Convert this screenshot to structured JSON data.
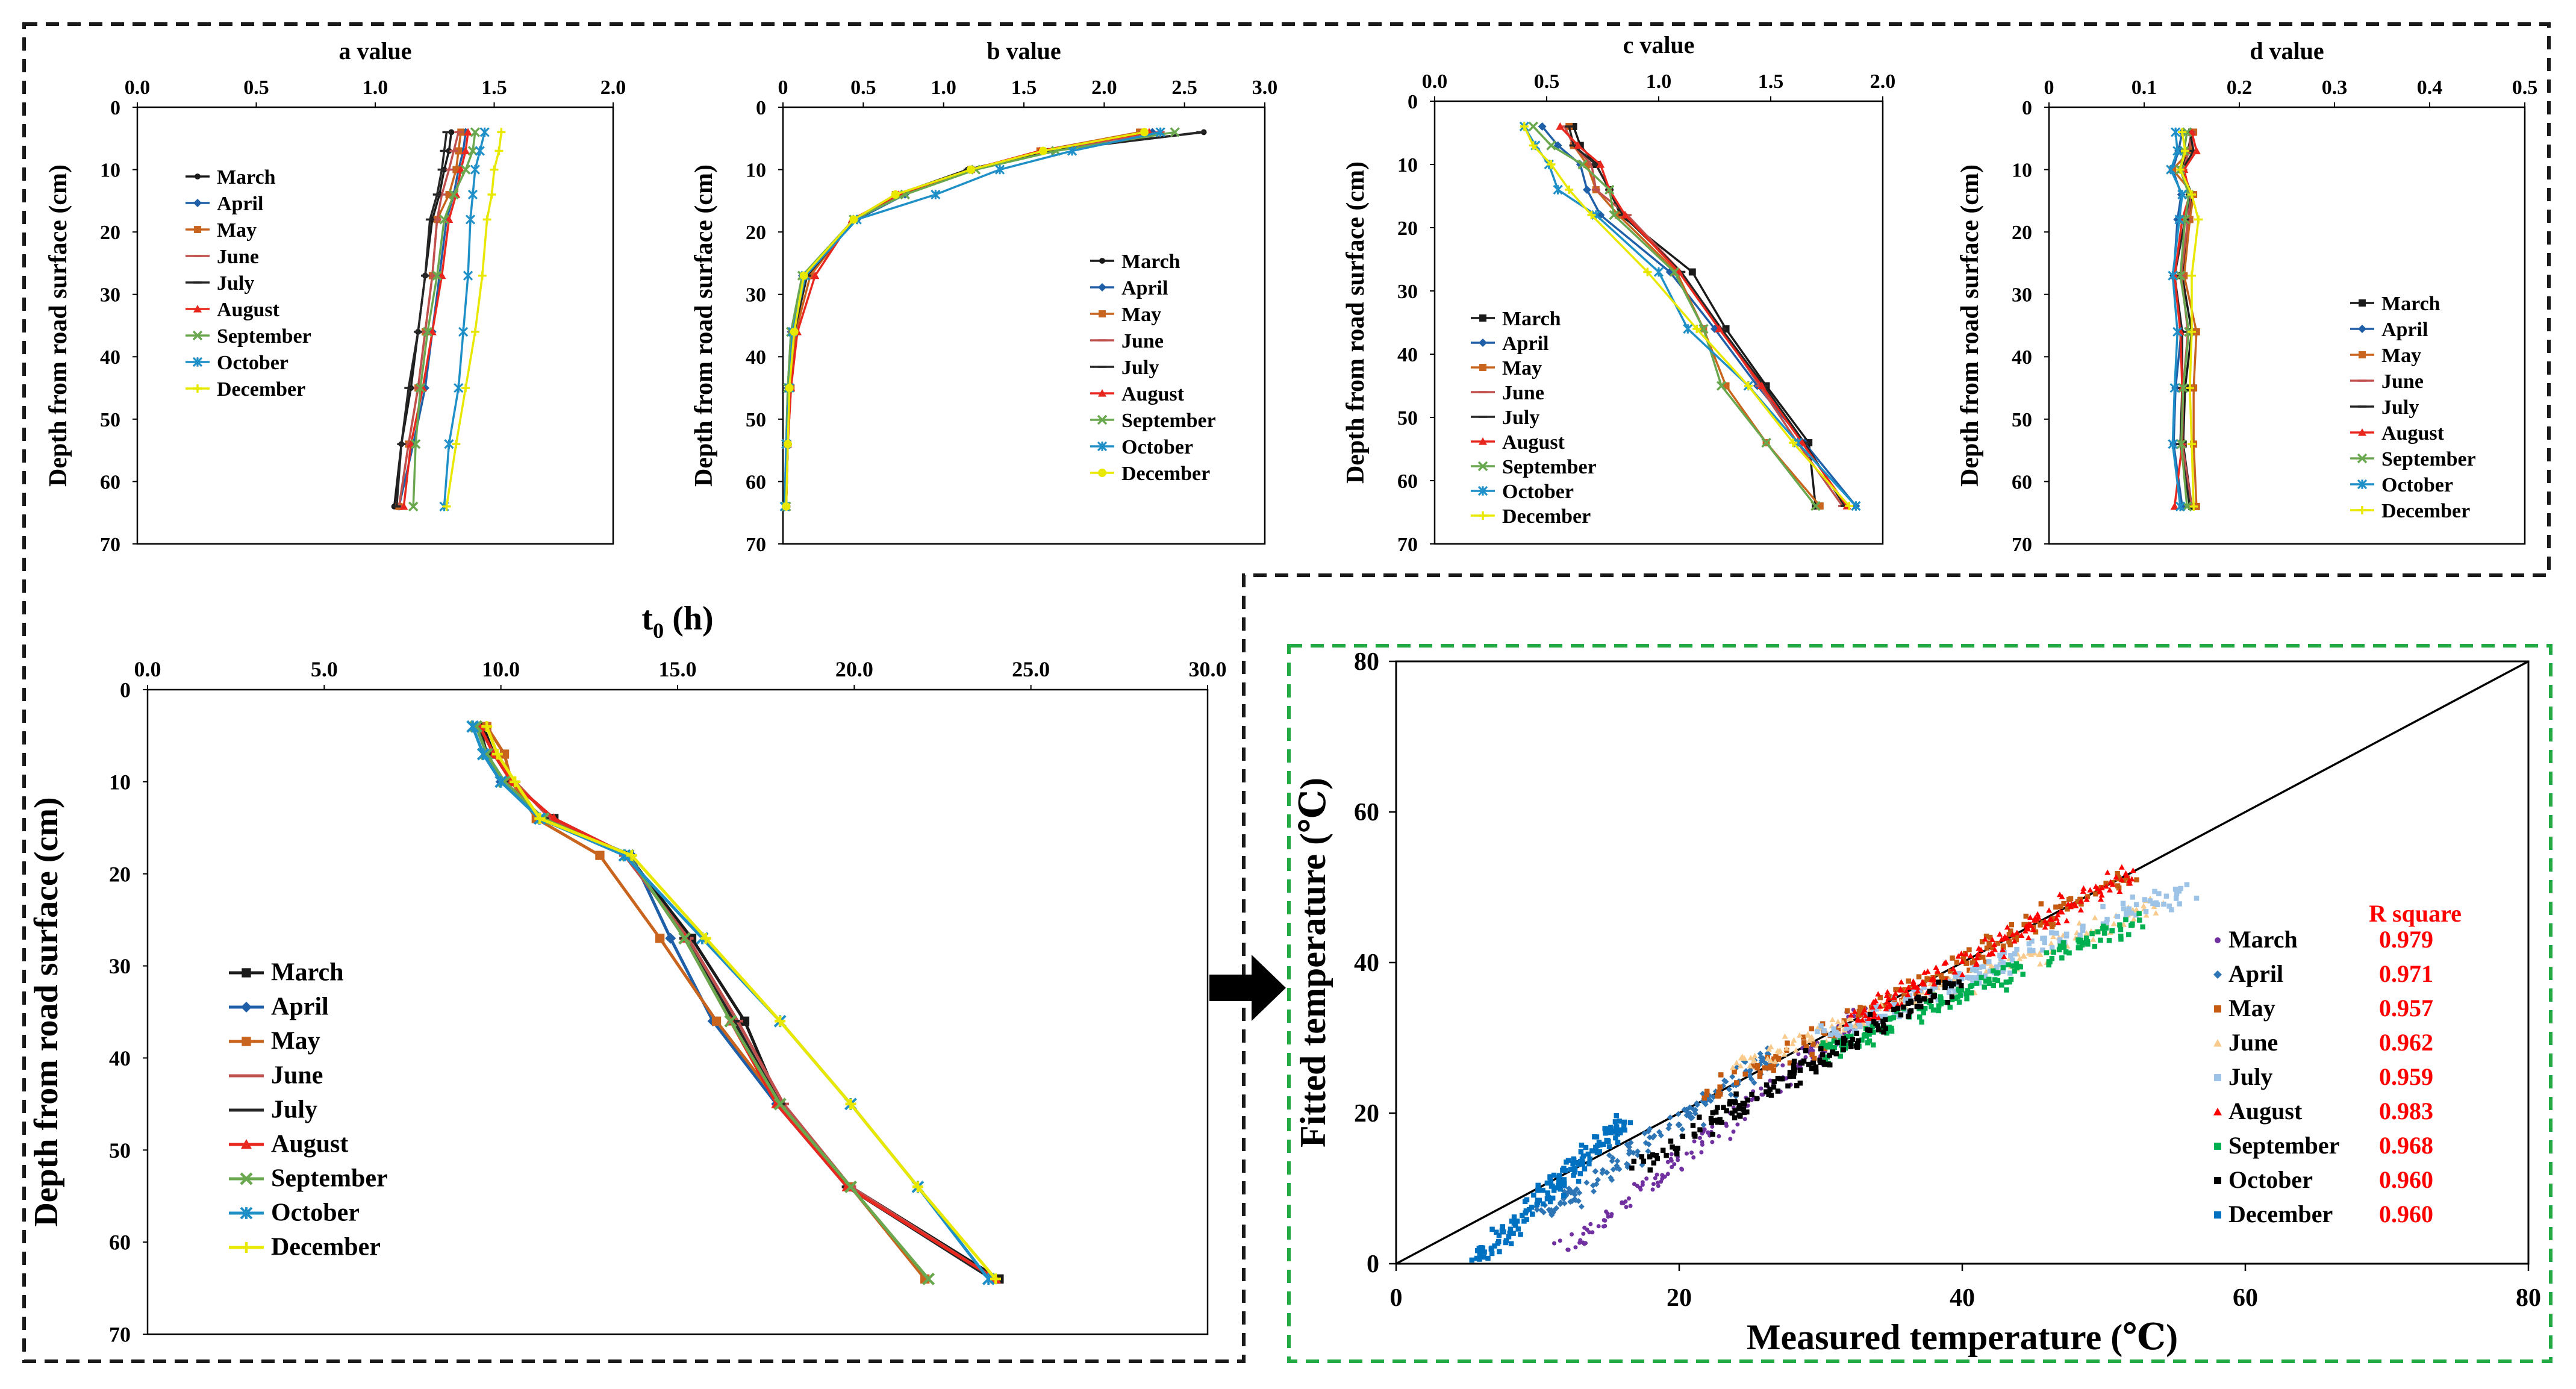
{
  "colors": {
    "March": "#1a1a1a",
    "April": "#1f5fa8",
    "May": "#c8641e",
    "June": "#c0504d",
    "July": "#262626",
    "August": "#e8281e",
    "September": "#6aa84f",
    "October": "#1f8fc8",
    "December": "#e8e800",
    "box_top": "#1a1a1a",
    "box_fit": "#22aa44",
    "arrow": "#000000"
  },
  "chart_data": [
    {
      "type": "line",
      "id": "a",
      "title": "a value",
      "ylabel": "Depth from road surface (cm)",
      "xlim": [
        0,
        2.0
      ],
      "xticks": [
        "0.0",
        "0.5",
        "1.0",
        "1.5",
        "2.0"
      ],
      "ylim": [
        0,
        70
      ],
      "yticks": [
        "0",
        "10",
        "20",
        "30",
        "40",
        "50",
        "60",
        "70"
      ],
      "legend": "center-left",
      "depths": [
        4,
        7,
        10,
        14,
        18,
        27,
        36,
        45,
        54,
        64
      ],
      "series": [
        {
          "name": "March",
          "marker": "dot",
          "values": [
            1.32,
            1.31,
            1.29,
            1.27,
            1.24,
            1.21,
            1.18,
            1.15,
            1.11,
            1.08
          ]
        },
        {
          "name": "April",
          "marker": "diamond",
          "values": [
            1.38,
            1.37,
            1.35,
            1.33,
            1.3,
            1.27,
            1.24,
            1.21,
            1.16,
            1.1
          ]
        },
        {
          "name": "May",
          "marker": "square",
          "values": [
            1.36,
            1.35,
            1.34,
            1.31,
            1.26,
            1.24,
            1.21,
            1.18,
            1.14,
            1.1
          ]
        },
        {
          "name": "June",
          "marker": "dash",
          "values": [
            1.35,
            1.33,
            1.31,
            1.28,
            1.26,
            1.24,
            1.21,
            1.18,
            1.14,
            1.1
          ]
        },
        {
          "name": "July",
          "marker": "dash",
          "values": [
            1.3,
            1.29,
            1.28,
            1.26,
            1.23,
            1.21,
            1.18,
            1.14,
            1.11,
            1.09
          ]
        },
        {
          "name": "August",
          "marker": "triangle",
          "values": [
            1.39,
            1.38,
            1.36,
            1.34,
            1.31,
            1.28,
            1.24,
            1.2,
            1.15,
            1.12
          ]
        },
        {
          "name": "September",
          "marker": "x",
          "values": [
            1.42,
            1.41,
            1.38,
            1.33,
            1.29,
            1.26,
            1.22,
            1.19,
            1.17,
            1.16
          ]
        },
        {
          "name": "October",
          "marker": "star",
          "values": [
            1.46,
            1.44,
            1.42,
            1.41,
            1.4,
            1.39,
            1.37,
            1.35,
            1.31,
            1.29
          ]
        },
        {
          "name": "December",
          "marker": "plus",
          "values": [
            1.53,
            1.52,
            1.5,
            1.49,
            1.47,
            1.45,
            1.42,
            1.38,
            1.34,
            1.3
          ]
        }
      ]
    },
    {
      "type": "line",
      "id": "b",
      "title": "b value",
      "ylabel": "Depth from road surface (cm)",
      "xlim": [
        0,
        3.0
      ],
      "xticks": [
        "0",
        "0.5",
        "1.0",
        "1.5",
        "2.0",
        "2.5",
        "3.0"
      ],
      "ylim": [
        0,
        70
      ],
      "yticks": [
        "0",
        "10",
        "20",
        "30",
        "40",
        "50",
        "60",
        "70"
      ],
      "legend": "right",
      "depths": [
        4,
        7,
        10,
        14,
        18,
        27,
        36,
        45,
        54,
        64
      ],
      "series": [
        {
          "name": "March",
          "marker": "dot",
          "values": [
            2.62,
            1.65,
            1.15,
            0.72,
            0.45,
            0.15,
            0.07,
            0.04,
            0.03,
            0.02
          ]
        },
        {
          "name": "April",
          "marker": "diamond",
          "values": [
            2.3,
            1.68,
            1.16,
            0.76,
            0.46,
            0.12,
            0.05,
            0.03,
            0.02,
            0.02
          ]
        },
        {
          "name": "May",
          "marker": "square",
          "values": [
            2.22,
            1.6,
            1.17,
            0.7,
            0.44,
            0.17,
            0.08,
            0.05,
            0.03,
            0.02
          ]
        },
        {
          "name": "June",
          "marker": "dash",
          "values": [
            2.35,
            1.62,
            1.18,
            0.74,
            0.45,
            0.14,
            0.06,
            0.04,
            0.03,
            0.02
          ]
        },
        {
          "name": "July",
          "marker": "dash",
          "values": [
            2.6,
            1.66,
            1.15,
            0.71,
            0.45,
            0.15,
            0.07,
            0.04,
            0.03,
            0.02
          ]
        },
        {
          "name": "August",
          "marker": "triangle",
          "values": [
            2.28,
            1.6,
            1.17,
            0.72,
            0.43,
            0.2,
            0.09,
            0.05,
            0.03,
            0.02
          ]
        },
        {
          "name": "September",
          "marker": "x",
          "values": [
            2.44,
            1.7,
            1.2,
            0.76,
            0.44,
            0.12,
            0.05,
            0.03,
            0.02,
            0.02
          ]
        },
        {
          "name": "October",
          "marker": "star",
          "values": [
            2.35,
            1.8,
            1.35,
            0.95,
            0.46,
            0.14,
            0.06,
            0.04,
            0.02,
            0.01
          ]
        },
        {
          "name": "December",
          "marker": "circle",
          "values": [
            2.25,
            1.62,
            1.17,
            0.7,
            0.44,
            0.13,
            0.07,
            0.04,
            0.03,
            0.02
          ]
        }
      ]
    },
    {
      "type": "line",
      "id": "c",
      "title": "c value",
      "ylabel": "Depth from road surface (cm)",
      "xlim": [
        0,
        2.0
      ],
      "xticks": [
        "0.0",
        "0.5",
        "1.0",
        "1.5",
        "2.0"
      ],
      "ylim": [
        0,
        70
      ],
      "yticks": [
        "0",
        "10",
        "20",
        "30",
        "40",
        "50",
        "60",
        "70"
      ],
      "legend": "bottom-left",
      "depths": [
        4,
        7,
        10,
        14,
        18,
        27,
        36,
        45,
        54,
        64
      ],
      "series": [
        {
          "name": "March",
          "marker": "square",
          "values": [
            0.62,
            0.65,
            0.72,
            0.78,
            0.83,
            1.15,
            1.3,
            1.48,
            1.67,
            1.7
          ]
        },
        {
          "name": "April",
          "marker": "diamond",
          "values": [
            0.48,
            0.55,
            0.65,
            0.68,
            0.74,
            1.05,
            1.25,
            1.44,
            1.65,
            1.88
          ]
        },
        {
          "name": "May",
          "marker": "square",
          "values": [
            0.6,
            0.62,
            0.68,
            0.72,
            0.82,
            1.08,
            1.2,
            1.3,
            1.48,
            1.72
          ]
        },
        {
          "name": "June",
          "marker": "dash",
          "values": [
            0.58,
            0.62,
            0.7,
            0.72,
            0.86,
            1.1,
            1.28,
            1.45,
            1.62,
            1.82
          ]
        },
        {
          "name": "July",
          "marker": "dash",
          "values": [
            0.6,
            0.62,
            0.72,
            0.78,
            0.84,
            1.1,
            1.28,
            1.47,
            1.65,
            1.83
          ]
        },
        {
          "name": "August",
          "marker": "triangle",
          "values": [
            0.56,
            0.64,
            0.74,
            0.78,
            0.85,
            1.09,
            1.27,
            1.46,
            1.64,
            1.84
          ]
        },
        {
          "name": "September",
          "marker": "x",
          "values": [
            0.44,
            0.52,
            0.66,
            0.78,
            0.8,
            1.07,
            1.2,
            1.28,
            1.48,
            1.7
          ]
        },
        {
          "name": "October",
          "marker": "star",
          "values": [
            0.4,
            0.45,
            0.51,
            0.55,
            0.72,
            1.0,
            1.13,
            1.4,
            1.62,
            1.88
          ]
        },
        {
          "name": "December",
          "marker": "plus",
          "values": [
            0.4,
            0.44,
            0.52,
            0.6,
            0.7,
            0.95,
            1.17,
            1.4,
            1.6,
            1.85
          ]
        }
      ]
    },
    {
      "type": "line",
      "id": "d",
      "title": "d value",
      "ylabel": "Depth from road surface (cm)",
      "xlim": [
        0,
        0.5
      ],
      "xticks": [
        "0",
        "0.1",
        "0.2",
        "0.3",
        "0.4",
        "0.5"
      ],
      "ylim": [
        0,
        70
      ],
      "yticks": [
        "0",
        "10",
        "20",
        "30",
        "40",
        "50",
        "60",
        "70"
      ],
      "legend": "right",
      "depths": [
        4,
        7,
        10,
        14,
        18,
        27,
        36,
        45,
        54,
        64
      ],
      "series": [
        {
          "name": "March",
          "marker": "square",
          "values": [
            0.15,
            0.146,
            0.14,
            0.15,
            0.146,
            0.14,
            0.15,
            0.143,
            0.141,
            0.15
          ]
        },
        {
          "name": "April",
          "marker": "diamond",
          "values": [
            0.14,
            0.136,
            0.13,
            0.139,
            0.135,
            0.131,
            0.139,
            0.133,
            0.131,
            0.14
          ]
        },
        {
          "name": "May",
          "marker": "square",
          "values": [
            0.152,
            0.148,
            0.13,
            0.152,
            0.148,
            0.142,
            0.155,
            0.152,
            0.152,
            0.155
          ]
        },
        {
          "name": "June",
          "marker": "dash",
          "values": [
            0.15,
            0.147,
            0.141,
            0.149,
            0.146,
            0.139,
            0.146,
            0.141,
            0.14,
            0.15
          ]
        },
        {
          "name": "July",
          "marker": "dash",
          "values": [
            0.148,
            0.152,
            0.14,
            0.148,
            0.143,
            0.132,
            0.14,
            0.14,
            0.138,
            0.148
          ]
        },
        {
          "name": "August",
          "marker": "triangle",
          "values": [
            0.15,
            0.155,
            0.142,
            0.148,
            0.14,
            0.132,
            0.138,
            0.14,
            0.14,
            0.132
          ]
        },
        {
          "name": "September",
          "marker": "x",
          "values": [
            0.145,
            0.142,
            0.138,
            0.147,
            0.143,
            0.138,
            0.147,
            0.141,
            0.139,
            0.145
          ]
        },
        {
          "name": "October",
          "marker": "star",
          "values": [
            0.133,
            0.135,
            0.128,
            0.14,
            0.137,
            0.13,
            0.135,
            0.132,
            0.13,
            0.138
          ]
        },
        {
          "name": "December",
          "marker": "plus",
          "values": [
            0.14,
            0.143,
            0.138,
            0.15,
            0.157,
            0.15,
            0.15,
            0.148,
            0.15,
            0.152
          ]
        }
      ]
    },
    {
      "type": "line",
      "id": "t0",
      "title": "t",
      "title_sub": "0",
      "title_suffix": "  (h)",
      "ylabel": "Depth from road surface (cm)",
      "xlim": [
        0,
        30
      ],
      "xticks": [
        "0.0",
        "5.0",
        "10.0",
        "15.0",
        "20.0",
        "25.0",
        "30.0"
      ],
      "ylim": [
        0,
        70
      ],
      "yticks": [
        "0",
        "10",
        "20",
        "30",
        "40",
        "50",
        "60",
        "70"
      ],
      "legend": "bottom-left",
      "depths": [
        4,
        7,
        10,
        14,
        18,
        27,
        36,
        45,
        54,
        64
      ],
      "series": [
        {
          "name": "March",
          "marker": "square",
          "values": [
            9.5,
            9.8,
            10.3,
            11.5,
            13.6,
            15.4,
            16.9,
            17.9,
            19.9,
            24.1
          ]
        },
        {
          "name": "April",
          "marker": "diamond",
          "values": [
            9.3,
            9.6,
            10.0,
            11.2,
            13.7,
            14.8,
            16.0,
            17.8,
            19.8,
            23.9
          ]
        },
        {
          "name": "May",
          "marker": "square",
          "values": [
            9.6,
            10.1,
            10.3,
            11.0,
            12.8,
            14.5,
            16.1,
            17.9,
            19.9,
            22.0
          ]
        },
        {
          "name": "June",
          "marker": "dash",
          "values": [
            9.4,
            9.8,
            10.4,
            11.4,
            13.5,
            15.3,
            16.7,
            18.0,
            19.9,
            24.0
          ]
        },
        {
          "name": "July",
          "marker": "dash",
          "values": [
            9.4,
            9.6,
            10.1,
            11.2,
            13.6,
            15.2,
            16.6,
            17.9,
            19.8,
            23.9
          ]
        },
        {
          "name": "August",
          "marker": "triangle",
          "values": [
            9.4,
            9.8,
            10.3,
            11.5,
            13.6,
            15.2,
            16.5,
            17.8,
            19.8,
            24.0
          ]
        },
        {
          "name": "September",
          "marker": "x",
          "values": [
            9.3,
            9.6,
            10.1,
            11.2,
            13.6,
            15.2,
            16.5,
            17.9,
            19.9,
            22.1
          ]
        },
        {
          "name": "October",
          "marker": "star",
          "values": [
            9.2,
            9.5,
            10.0,
            11.1,
            13.5,
            15.7,
            17.9,
            19.9,
            21.8,
            23.8
          ]
        },
        {
          "name": "December",
          "marker": "plus",
          "values": [
            9.6,
            9.9,
            10.4,
            11.1,
            13.7,
            15.8,
            17.9,
            19.9,
            21.8,
            24.0
          ]
        }
      ]
    },
    {
      "type": "scatter",
      "id": "fit",
      "xlabel": "Measured temperature (℃)",
      "ylabel": "Fitted temperature (℃)",
      "xlim": [
        0,
        80
      ],
      "ylim": [
        0,
        80
      ],
      "xticks": [
        "0",
        "20",
        "40",
        "60",
        "80"
      ],
      "yticks": [
        "0",
        "20",
        "40",
        "60",
        "80"
      ],
      "reference_line": "y = x",
      "legend_title": "R square",
      "legend": "bottom-right",
      "series": [
        {
          "name": "March",
          "marker": "dot",
          "r_square": "0.979",
          "x_range": [
            12,
            33
          ],
          "y_range": [
            2,
            33
          ]
        },
        {
          "name": "April",
          "marker": "diamond",
          "r_square": "0.971",
          "x_range": [
            10,
            27
          ],
          "y_range": [
            6,
            28
          ]
        },
        {
          "name": "May",
          "marker": "square",
          "r_square": "0.957",
          "x_range": [
            22,
            52
          ],
          "y_range": [
            22,
            52
          ]
        },
        {
          "name": "June",
          "marker": "tri",
          "r_square": "0.962",
          "x_range": [
            24,
            54
          ],
          "y_range": [
            26,
            48
          ]
        },
        {
          "name": "July",
          "marker": "square",
          "r_square": "0.959",
          "x_range": [
            30,
            56
          ],
          "y_range": [
            30,
            50
          ]
        },
        {
          "name": "August",
          "marker": "triangle",
          "r_square": "0.983",
          "x_range": [
            32,
            52
          ],
          "y_range": [
            32,
            52
          ]
        },
        {
          "name": "September",
          "marker": "square",
          "r_square": "0.968",
          "x_range": [
            30,
            53
          ],
          "y_range": [
            28,
            46
          ]
        },
        {
          "name": "October",
          "marker": "square",
          "r_square": "0.960",
          "x_range": [
            17,
            40
          ],
          "y_range": [
            13,
            38
          ]
        },
        {
          "name": "December",
          "marker": "square",
          "r_square": "0.960",
          "x_range": [
            6,
            16
          ],
          "y_range": [
            1,
            19
          ]
        }
      ]
    }
  ]
}
